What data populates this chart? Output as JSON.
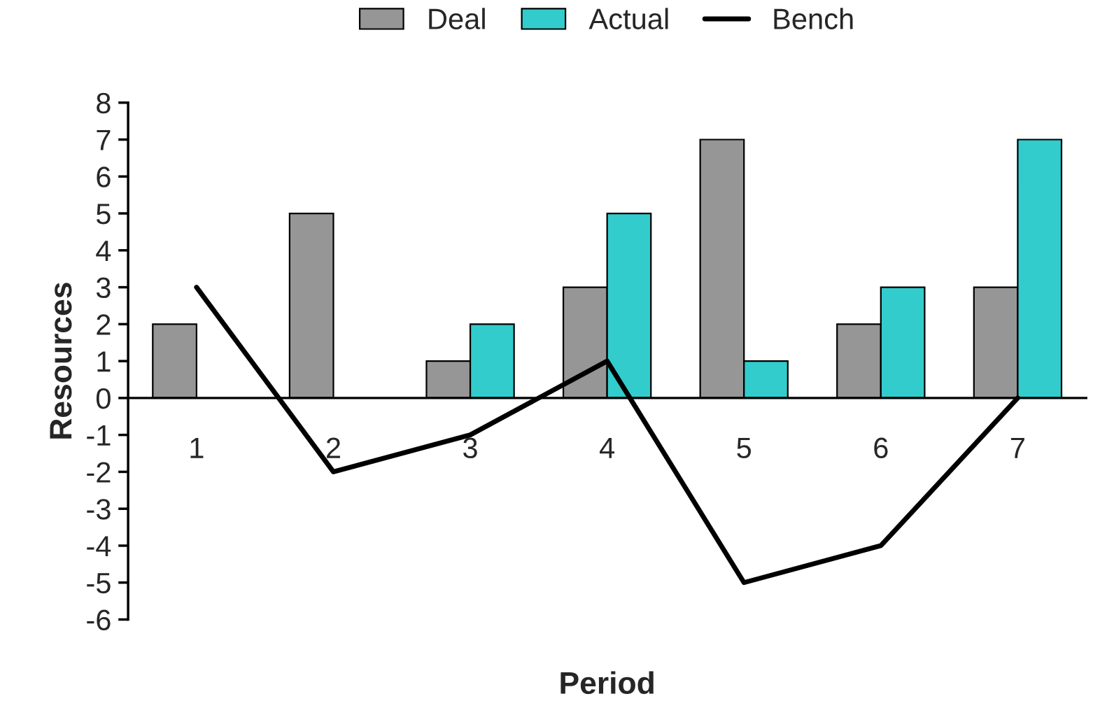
{
  "chart_data": {
    "type": "bar",
    "xlabel": "Period",
    "ylabel": "Resources",
    "categories": [
      "1",
      "2",
      "3",
      "4",
      "5",
      "6",
      "7"
    ],
    "series": [
      {
        "name": "Deal",
        "color": "#969696",
        "values": [
          2,
          5,
          1,
          3,
          7,
          2,
          3
        ]
      },
      {
        "name": "Actual",
        "color": "#33cccc",
        "values": [
          null,
          null,
          2,
          5,
          1,
          3,
          7
        ]
      },
      {
        "name": "Bench",
        "type": "line",
        "color": "#000000",
        "values": [
          3,
          -2,
          -1,
          1,
          -5,
          -4,
          0
        ]
      }
    ],
    "ylim": [
      -6,
      8
    ],
    "yticks": [
      -6,
      -5,
      -4,
      -3,
      -2,
      -1,
      0,
      1,
      2,
      3,
      4,
      5,
      6,
      7,
      8
    ],
    "grid": false,
    "legend": "top",
    "marker": "none",
    "line_style": "solid"
  }
}
